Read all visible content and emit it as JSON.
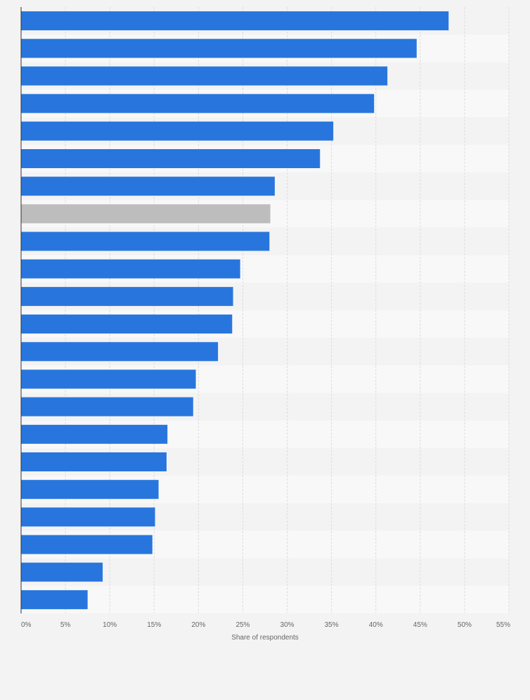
{
  "chart_data": {
    "type": "bar",
    "orientation": "horizontal",
    "title": "",
    "xlabel": "Share of respondents",
    "ylabel": "",
    "xlim": [
      0,
      55
    ],
    "x_ticks": [
      0,
      5,
      10,
      15,
      20,
      25,
      30,
      35,
      40,
      45,
      50,
      55
    ],
    "x_tick_labels": [
      "0%",
      "5%",
      "10%",
      "15%",
      "20%",
      "25%",
      "30%",
      "35%",
      "40%",
      "45%",
      "50%",
      "55%"
    ],
    "grid": true,
    "legend": "none",
    "categories": [
      "",
      "",
      "",
      "",
      "",
      "",
      "",
      "",
      "",
      "",
      "",
      "",
      "",
      "",
      "",
      "",
      "",
      "",
      "",
      "",
      "",
      ""
    ],
    "values": [
      48.2,
      44.6,
      41.3,
      39.8,
      35.2,
      33.7,
      28.6,
      28.1,
      28.0,
      24.7,
      23.9,
      23.8,
      22.2,
      19.7,
      19.4,
      16.5,
      16.4,
      15.5,
      15.1,
      14.8,
      9.2,
      7.5
    ],
    "highlight_index": 7,
    "colors": {
      "bar": "#2876dd",
      "highlight": "#bdbdbd",
      "grid": "#dcdcdc",
      "axis": "#333333"
    }
  }
}
